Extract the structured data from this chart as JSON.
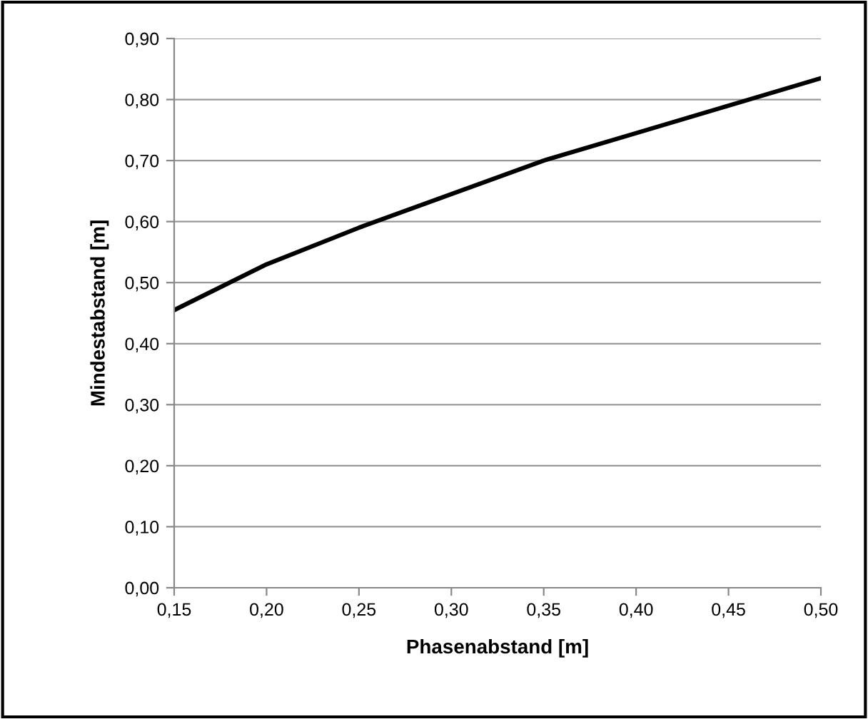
{
  "chart_data": {
    "type": "line",
    "xlabel": "Phasenabstand [m]",
    "ylabel": "Mindestabstand [m]",
    "x": [
      0.15,
      0.2,
      0.25,
      0.3,
      0.35,
      0.4,
      0.45,
      0.5
    ],
    "series": [
      {
        "color": "#000000",
        "values": [
          0.455,
          0.53,
          0.59,
          0.645,
          0.7,
          0.745,
          0.79,
          0.835
        ]
      }
    ],
    "xlim": [
      0.15,
      0.5
    ],
    "ylim": [
      0,
      0.9
    ],
    "xticks": [
      {
        "value": 0.15,
        "label": "0,15"
      },
      {
        "value": 0.2,
        "label": "0,20"
      },
      {
        "value": 0.25,
        "label": "0,25"
      },
      {
        "value": 0.3,
        "label": "0,30"
      },
      {
        "value": 0.35,
        "label": "0,35"
      },
      {
        "value": 0.4,
        "label": "0,40"
      },
      {
        "value": 0.45,
        "label": "0,45"
      },
      {
        "value": 0.5,
        "label": "0,50"
      }
    ],
    "yticks": [
      {
        "value": 0,
        "label": "0,00"
      },
      {
        "value": 0.1,
        "label": "0,10"
      },
      {
        "value": 0.2,
        "label": "0,20"
      },
      {
        "value": 0.3,
        "label": "0,30"
      },
      {
        "value": 0.4,
        "label": "0,40"
      },
      {
        "value": 0.5,
        "label": "0,50"
      },
      {
        "value": 0.6,
        "label": "0,60"
      },
      {
        "value": 0.7,
        "label": "0,70"
      },
      {
        "value": 0.8,
        "label": "0,80"
      },
      {
        "value": 0.9,
        "label": "0,90"
      }
    ],
    "grid": "y",
    "marker": "none",
    "line_style": "solid",
    "legend": false
  }
}
